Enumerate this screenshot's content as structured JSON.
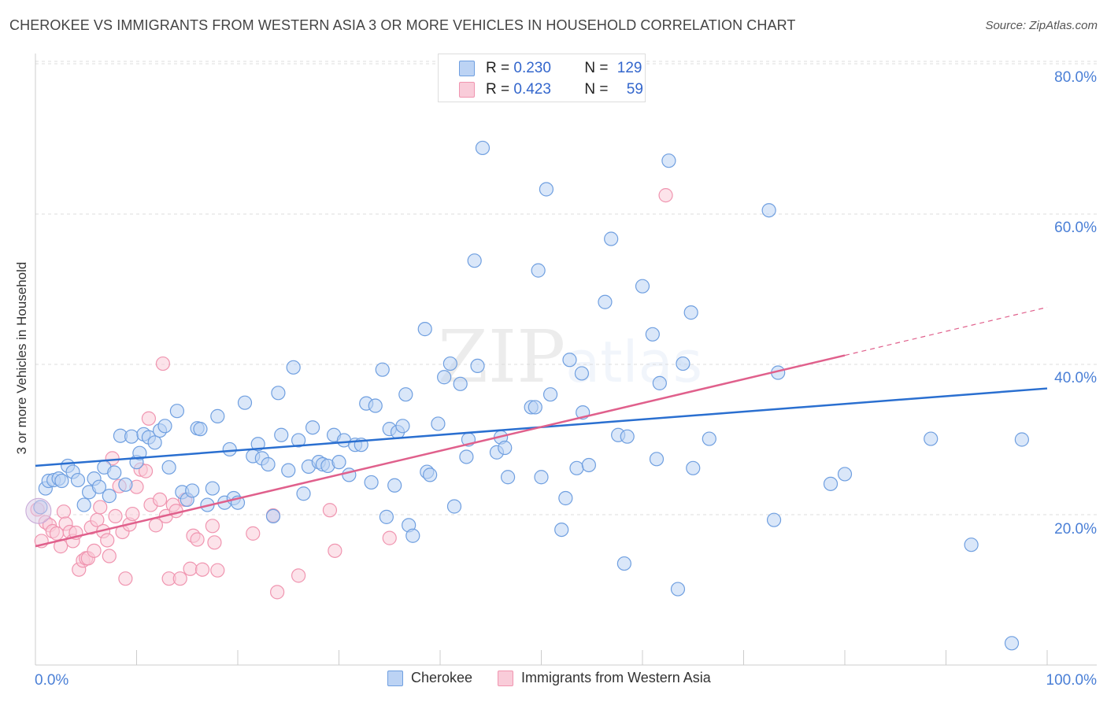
{
  "header": {
    "title": "CHEROKEE VS IMMIGRANTS FROM WESTERN ASIA 3 OR MORE VEHICLES IN HOUSEHOLD CORRELATION CHART",
    "source": "Source: ZipAtlas.com"
  },
  "watermark": {
    "zip": "ZIP",
    "atlas": "atlas"
  },
  "legend_top": {
    "rows": [
      {
        "r_label": "R = ",
        "r_value": "0.230",
        "n_label": "N = ",
        "n_value": "129"
      },
      {
        "r_label": "R = ",
        "r_value": "0.423",
        "n_label": "N = ",
        "n_value": "59"
      }
    ]
  },
  "chart_data": {
    "type": "scatter",
    "title": "CHEROKEE VS IMMIGRANTS FROM WESTERN ASIA 3 OR MORE VEHICLES IN HOUSEHOLD CORRELATION CHART",
    "xlabel": "",
    "ylabel": "3 or more Vehicles in Household",
    "xlim": [
      0,
      100
    ],
    "ylim": [
      0,
      85
    ],
    "x_tick_labels": [
      "0.0%",
      "100.0%"
    ],
    "y_ticks": [
      20,
      40,
      60,
      80
    ],
    "y_tick_labels": [
      "20.0%",
      "40.0%",
      "60.0%",
      "80.0%"
    ],
    "grid": true,
    "legend": "bottom",
    "colors": {
      "Cherokee": "#6f9fe0",
      "Immigrants from Western Asia": "#f095b0",
      "blue_line": "#2a6fd0",
      "pink_line": "#e0608c"
    },
    "series": [
      {
        "name": "Cherokee",
        "color": "#6f9fe0",
        "trend": {
          "x": [
            0,
            100
          ],
          "y": [
            26.5,
            36.8
          ]
        },
        "points": [
          [
            0.5,
            21
          ],
          [
            1,
            23.5
          ],
          [
            1.3,
            24.5
          ],
          [
            1.8,
            24.6
          ],
          [
            2.3,
            24.8
          ],
          [
            2.6,
            24.5
          ],
          [
            3.2,
            26.5
          ],
          [
            3.7,
            25.7
          ],
          [
            4.2,
            24.6
          ],
          [
            4.8,
            21.3
          ],
          [
            5.3,
            23
          ],
          [
            5.8,
            24.8
          ],
          [
            6.3,
            23.7
          ],
          [
            6.8,
            26.3
          ],
          [
            7.3,
            22.5
          ],
          [
            7.8,
            25.6
          ],
          [
            8.4,
            30.5
          ],
          [
            8.9,
            24
          ],
          [
            9.5,
            30.4
          ],
          [
            10,
            27
          ],
          [
            10.3,
            28.2
          ],
          [
            10.7,
            30.7
          ],
          [
            11.2,
            30.3
          ],
          [
            11.8,
            29.6
          ],
          [
            12.3,
            31.2
          ],
          [
            12.8,
            31.8
          ],
          [
            13.2,
            26.3
          ],
          [
            14,
            33.8
          ],
          [
            14.5,
            23
          ],
          [
            15,
            22
          ],
          [
            15.5,
            23.2
          ],
          [
            16,
            31.5
          ],
          [
            16.3,
            31.4
          ],
          [
            17,
            21.3
          ],
          [
            17.5,
            23.5
          ],
          [
            18,
            33.1
          ],
          [
            18.7,
            21.6
          ],
          [
            19.2,
            28.7
          ],
          [
            19.6,
            22.2
          ],
          [
            20,
            21.6
          ],
          [
            20.7,
            34.9
          ],
          [
            21.5,
            27.8
          ],
          [
            22,
            29.4
          ],
          [
            22.4,
            27.5
          ],
          [
            23,
            26.7
          ],
          [
            23.5,
            19.8
          ],
          [
            24,
            36.2
          ],
          [
            24.3,
            30.6
          ],
          [
            25,
            25.9
          ],
          [
            25.5,
            39.6
          ],
          [
            26,
            29.9
          ],
          [
            26.5,
            22.8
          ],
          [
            27,
            26.4
          ],
          [
            27.4,
            31.6
          ],
          [
            28,
            27
          ],
          [
            28.4,
            26.7
          ],
          [
            28.9,
            26.5
          ],
          [
            29.5,
            30.6
          ],
          [
            30,
            27
          ],
          [
            30.5,
            29.9
          ],
          [
            31,
            25.3
          ],
          [
            31.6,
            29.3
          ],
          [
            32.2,
            29.3
          ],
          [
            32.7,
            34.8
          ],
          [
            33.2,
            24.3
          ],
          [
            33.6,
            34.5
          ],
          [
            34.3,
            39.3
          ],
          [
            34.7,
            19.7
          ],
          [
            35,
            31.4
          ],
          [
            35.5,
            23.9
          ],
          [
            35.8,
            31
          ],
          [
            36.3,
            31.8
          ],
          [
            36.6,
            36
          ],
          [
            36.9,
            18.6
          ],
          [
            37.3,
            17.2
          ],
          [
            38.5,
            44.7
          ],
          [
            38.7,
            25.7
          ],
          [
            39,
            25.3
          ],
          [
            39.8,
            32.1
          ],
          [
            40.4,
            38.3
          ],
          [
            41,
            40.1
          ],
          [
            41.4,
            21.1
          ],
          [
            42,
            37.4
          ],
          [
            42.6,
            27.7
          ],
          [
            42.8,
            30
          ],
          [
            43.4,
            53.8
          ],
          [
            43.7,
            39.8
          ],
          [
            44.2,
            68.8
          ],
          [
            45.6,
            28.3
          ],
          [
            46,
            30.3
          ],
          [
            46.4,
            28.9
          ],
          [
            46.7,
            25
          ],
          [
            49,
            34.3
          ],
          [
            49.4,
            34.3
          ],
          [
            49.7,
            52.5
          ],
          [
            50,
            25
          ],
          [
            50.5,
            63.3
          ],
          [
            50.9,
            36
          ],
          [
            52,
            18
          ],
          [
            52.4,
            22.2
          ],
          [
            52.8,
            40.6
          ],
          [
            53.5,
            26.2
          ],
          [
            54,
            38.8
          ],
          [
            54.1,
            33.6
          ],
          [
            54.7,
            26.6
          ],
          [
            56.3,
            48.3
          ],
          [
            56.9,
            56.7
          ],
          [
            57.6,
            30.6
          ],
          [
            58.2,
            13.5
          ],
          [
            58.5,
            30.4
          ],
          [
            60,
            50.4
          ],
          [
            61,
            44
          ],
          [
            61.4,
            27.4
          ],
          [
            61.7,
            37.5
          ],
          [
            62.6,
            67.1
          ],
          [
            63.5,
            10.1
          ],
          [
            64,
            40.1
          ],
          [
            64.8,
            46.9
          ],
          [
            65,
            26.2
          ],
          [
            66.6,
            30.1
          ],
          [
            72.5,
            60.5
          ],
          [
            73,
            19.3
          ],
          [
            73.4,
            38.9
          ],
          [
            78.6,
            24.1
          ],
          [
            80,
            25.4
          ],
          [
            88.5,
            30.1
          ],
          [
            92.5,
            16
          ],
          [
            96.5,
            2.9
          ],
          [
            97.5,
            30
          ]
        ]
      },
      {
        "name": "Immigrants from Western Asia",
        "color": "#f095b0",
        "trend": {
          "x": [
            0,
            80
          ],
          "y": [
            15.8,
            41.2
          ]
        },
        "trend_dashed": {
          "x": [
            80,
            100
          ],
          "y": [
            41.2,
            47.6
          ]
        },
        "points": [
          [
            0.2,
            20.7
          ],
          [
            0.6,
            16.5
          ],
          [
            1,
            19
          ],
          [
            1.4,
            18.6
          ],
          [
            1.7,
            17.8
          ],
          [
            2.1,
            17.5
          ],
          [
            2.5,
            15.8
          ],
          [
            2.8,
            20.4
          ],
          [
            3,
            18.8
          ],
          [
            3.4,
            17.7
          ],
          [
            3.7,
            16.5
          ],
          [
            4,
            17.6
          ],
          [
            4.3,
            12.7
          ],
          [
            4.7,
            13.9
          ],
          [
            5,
            14.2
          ],
          [
            5.2,
            14.2
          ],
          [
            5.5,
            18.3
          ],
          [
            5.8,
            15.2
          ],
          [
            6.1,
            19.3
          ],
          [
            6.4,
            21
          ],
          [
            6.7,
            17.8
          ],
          [
            7.1,
            16.6
          ],
          [
            7.3,
            14.5
          ],
          [
            7.6,
            27.5
          ],
          [
            7.9,
            19.8
          ],
          [
            8.3,
            23.8
          ],
          [
            8.6,
            17.7
          ],
          [
            8.9,
            11.5
          ],
          [
            9.3,
            18.7
          ],
          [
            9.6,
            20.1
          ],
          [
            10,
            23.7
          ],
          [
            10.4,
            26
          ],
          [
            10.9,
            25.8
          ],
          [
            11.2,
            32.8
          ],
          [
            11.4,
            21.3
          ],
          [
            11.9,
            18.6
          ],
          [
            12.3,
            22
          ],
          [
            12.6,
            40.1
          ],
          [
            12.9,
            19.8
          ],
          [
            13.2,
            11.5
          ],
          [
            13.6,
            21.3
          ],
          [
            13.9,
            20.5
          ],
          [
            14.3,
            11.5
          ],
          [
            14.8,
            22
          ],
          [
            15.3,
            12.8
          ],
          [
            15.6,
            17.2
          ],
          [
            16,
            16.7
          ],
          [
            16.5,
            12.7
          ],
          [
            17.5,
            18.5
          ],
          [
            17.7,
            16.3
          ],
          [
            18,
            12.6
          ],
          [
            21.5,
            17.5
          ],
          [
            23.5,
            19.9
          ],
          [
            23.9,
            9.7
          ],
          [
            26,
            11.9
          ],
          [
            29.1,
            20.6
          ],
          [
            29.6,
            15.2
          ],
          [
            35,
            16.9
          ],
          [
            62.3,
            62.5
          ]
        ]
      }
    ]
  },
  "legend_bottom": {
    "items": [
      {
        "label": "Cherokee"
      },
      {
        "label": "Immigrants from Western Asia"
      }
    ]
  }
}
